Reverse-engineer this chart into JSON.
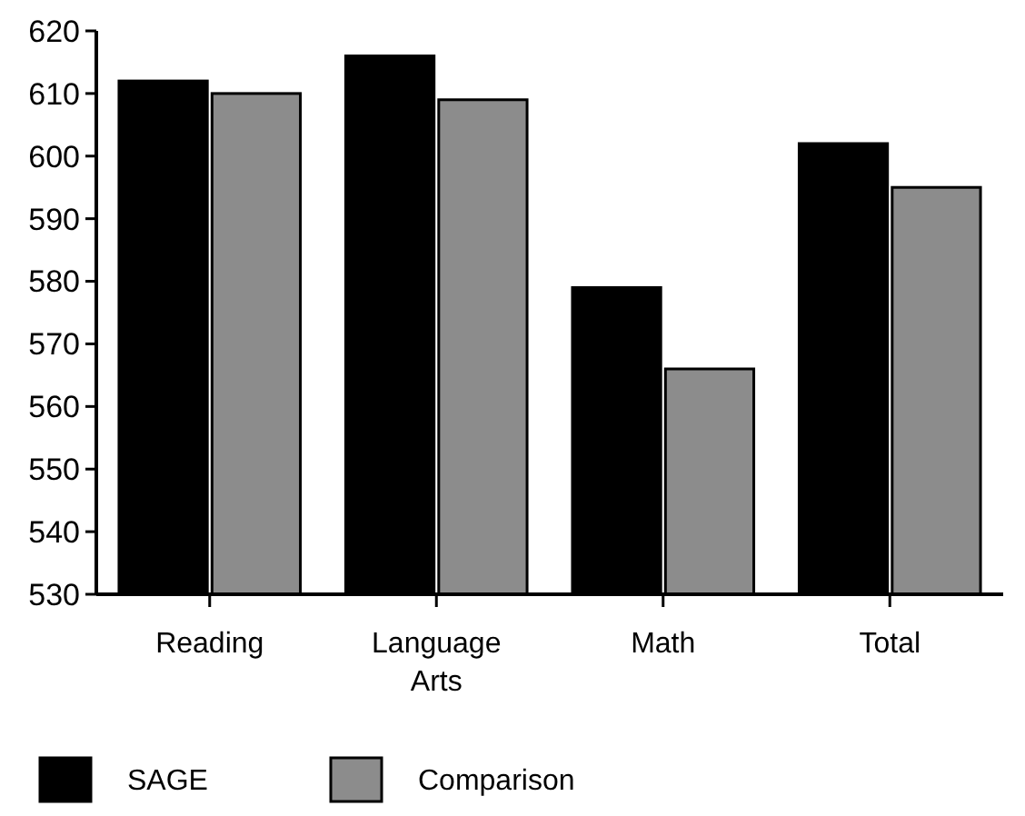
{
  "chart_data": {
    "type": "bar",
    "categories": [
      "Reading",
      "Language Arts",
      "Math",
      "Total"
    ],
    "series": [
      {
        "name": "SAGE",
        "color": "#000000",
        "values": [
          612,
          616,
          579,
          602
        ]
      },
      {
        "name": "Comparison",
        "color": "#8c8c8c",
        "values": [
          610,
          609,
          566,
          595
        ]
      }
    ],
    "ylim": [
      530,
      620
    ],
    "yticks": [
      530,
      540,
      550,
      560,
      570,
      580,
      590,
      600,
      610,
      620
    ],
    "legend": "bottom left",
    "grid": false
  }
}
